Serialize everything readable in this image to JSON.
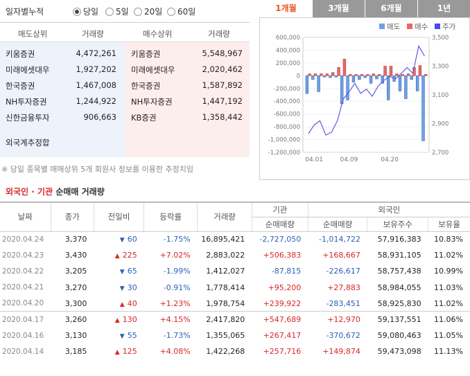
{
  "period": {
    "title": "일자별누적",
    "options": [
      {
        "label": "당일",
        "selected": true
      },
      {
        "label": "5일",
        "selected": false
      },
      {
        "label": "20일",
        "selected": false
      },
      {
        "label": "60일",
        "selected": false
      }
    ]
  },
  "broker": {
    "headers": {
      "sell_rank": "매도상위",
      "sell_vol": "거래량",
      "buy_rank": "매수상위",
      "buy_vol": "거래량"
    },
    "sell": [
      {
        "name": "키움증권",
        "vol": "4,472,261"
      },
      {
        "name": "미래에셋대우",
        "vol": "1,927,202"
      },
      {
        "name": "한국증권",
        "vol": "1,467,008"
      },
      {
        "name": "NH투자증권",
        "vol": "1,244,922"
      },
      {
        "name": "신한금융투자",
        "vol": "906,663"
      }
    ],
    "buy": [
      {
        "name": "키움증권",
        "vol": "5,548,967"
      },
      {
        "name": "미래에셋대우",
        "vol": "2,020,462"
      },
      {
        "name": "한국증권",
        "vol": "1,587,892"
      },
      {
        "name": "NH투자증권",
        "vol": "1,447,192"
      },
      {
        "name": "KB증권",
        "vol": "1,358,442"
      }
    ],
    "foreign_estimate_label": "외국계추정합",
    "note": "※ 당일 종목별 매매상위 5개 회원사 정보를 이용한 추정치임"
  },
  "chart_tabs": [
    {
      "label": "1개월",
      "active": true
    },
    {
      "label": "3개월",
      "active": false
    },
    {
      "label": "6개월",
      "active": false
    },
    {
      "label": "1년",
      "active": false
    }
  ],
  "chart_data": {
    "type": "bar",
    "legend": [
      {
        "name": "매도",
        "color": "#6fa0e6"
      },
      {
        "name": "매수",
        "color": "#e66a6a"
      },
      {
        "name": "주가",
        "color": "#4a4ae6"
      }
    ],
    "x_ticks": [
      "04.01",
      "04.09",
      "04.20"
    ],
    "y_left": {
      "ticks": [
        "600,000",
        "400,000",
        "200,000",
        "0",
        "-200,000",
        "-400,000",
        "-600,000",
        "-800,000",
        "-1,000,000",
        "-1,200,000"
      ],
      "range": [
        -1200000,
        600000
      ]
    },
    "y_right": {
      "ticks": [
        "3,500",
        "3,300",
        "3,100",
        "2,900",
        "2,700"
      ],
      "range": [
        2700,
        3500
      ]
    },
    "sell_values": [
      -280000,
      -60000,
      -250000,
      -20000,
      -30000,
      -20000,
      -440000,
      -380000,
      -100000,
      -60000,
      -30000,
      -120000,
      -50000,
      -120000,
      -380000,
      -90000,
      -240000,
      -360000,
      -60000,
      -240000,
      -1020000
    ],
    "buy_values": [
      30000,
      30000,
      30000,
      30000,
      50000,
      130000,
      260000,
      20000,
      20000,
      20000,
      20000,
      30000,
      20000,
      150000,
      150000,
      30000,
      20000,
      30000,
      130000,
      160000,
      20000
    ],
    "price_values": [
      2830,
      2890,
      2920,
      2820,
      2840,
      2920,
      3070,
      3120,
      3180,
      3110,
      3140,
      3090,
      3160,
      3200,
      3230,
      3210,
      3250,
      3290,
      3250,
      3440,
      3370
    ]
  },
  "section": {
    "title_red": "외국인 · 기관",
    "title_dark": "순매매 거래량"
  },
  "table": {
    "headers": {
      "date": "날짜",
      "close": "종가",
      "change": "전일비",
      "rate": "등락률",
      "volume": "거래량",
      "inst": "기관",
      "inst_net": "순매매량",
      "foreign": "외국인",
      "foreign_net": "순매매량",
      "foreign_hold": "보유주수",
      "foreign_ratio": "보유율"
    },
    "rows": [
      {
        "date": "2020.04.24",
        "close": "3,370",
        "dir": "down",
        "change": "60",
        "rate": "-1.75%",
        "volume": "16,895,421",
        "inst": "-2,727,050",
        "foreign": "-1,014,722",
        "hold": "57,916,383",
        "ratio": "10.83%"
      },
      {
        "date": "2020.04.23",
        "close": "3,430",
        "dir": "up",
        "change": "225",
        "rate": "+7.02%",
        "volume": "2,883,022",
        "inst": "+506,383",
        "foreign": "+168,667",
        "hold": "58,931,105",
        "ratio": "11.02%"
      },
      {
        "date": "2020.04.22",
        "close": "3,205",
        "dir": "down",
        "change": "65",
        "rate": "-1.99%",
        "volume": "1,412,027",
        "inst": "-87,815",
        "foreign": "-226,617",
        "hold": "58,757,438",
        "ratio": "10.99%"
      },
      {
        "date": "2020.04.21",
        "close": "3,270",
        "dir": "down",
        "change": "30",
        "rate": "-0.91%",
        "volume": "1,778,414",
        "inst": "+95,200",
        "foreign": "+27,883",
        "hold": "58,984,055",
        "ratio": "11.03%"
      },
      {
        "date": "2020.04.20",
        "close": "3,300",
        "dir": "up",
        "change": "40",
        "rate": "+1.23%",
        "volume": "1,978,754",
        "inst": "+239,922",
        "foreign": "-283,451",
        "hold": "58,925,830",
        "ratio": "11.02%"
      },
      {
        "date": "2020.04.17",
        "close": "3,260",
        "dir": "up",
        "change": "130",
        "rate": "+4.15%",
        "volume": "2,417,820",
        "inst": "+547,689",
        "foreign": "+12,970",
        "hold": "59,137,551",
        "ratio": "11.06%"
      },
      {
        "date": "2020.04.16",
        "close": "3,130",
        "dir": "down",
        "change": "55",
        "rate": "-1.73%",
        "volume": "1,355,065",
        "inst": "+267,417",
        "foreign": "-370,672",
        "hold": "59,080,463",
        "ratio": "11.05%"
      },
      {
        "date": "2020.04.14",
        "close": "3,185",
        "dir": "up",
        "change": "125",
        "rate": "+4.08%",
        "volume": "1,422,268",
        "inst": "+257,716",
        "foreign": "+149,874",
        "hold": "59,473,098",
        "ratio": "11.13%"
      }
    ]
  }
}
